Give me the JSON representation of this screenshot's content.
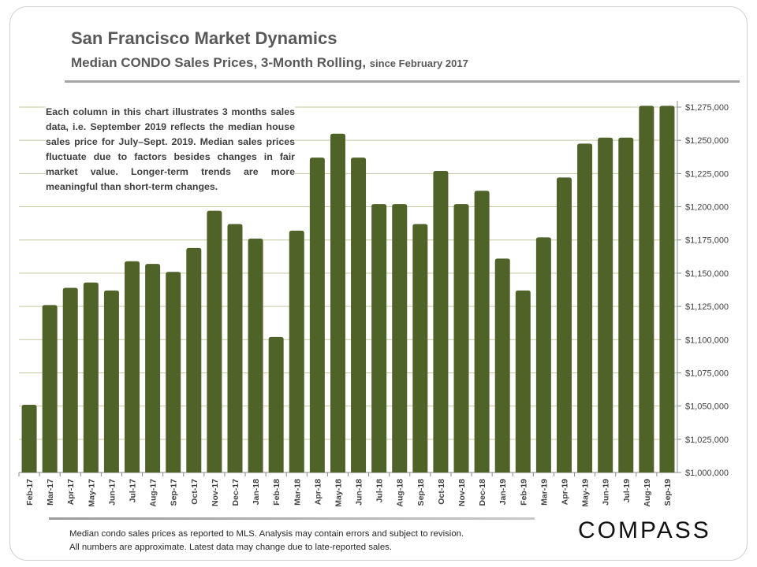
{
  "header": {
    "title": "San Francisco Market Dynamics",
    "subtitle": "Median CONDO Sales Prices, 3-Month Rolling,",
    "subtitle_small": "since February 2017"
  },
  "note": "Each column in this chart illustrates 3 months sales data, i.e. September 2019 reflects the median house sales price for July–Sept. 2019. Median sales prices fluctuate due to factors besides changes in fair market value. Longer-term trends are more meaningful than short-term changes.",
  "footer": {
    "line1": "Median condo sales prices as reported to MLS.  Analysis may contain errors and subject to revision.",
    "line2": "All numbers are approximate. Latest data may change due to late-reported sales.",
    "logo": "COMPASS"
  },
  "colors": {
    "bar": "#4f6228",
    "grid": "#c4c9a0",
    "text": "#595959"
  },
  "chart_data": {
    "type": "bar",
    "title": "",
    "xlabel": "",
    "ylabel": "",
    "ylim": [
      1000000,
      1275000
    ],
    "grid": true,
    "y_axis_side": "right",
    "yticks": [
      1000000,
      1025000,
      1050000,
      1075000,
      1100000,
      1125000,
      1150000,
      1175000,
      1200000,
      1225000,
      1250000,
      1275000
    ],
    "ytick_labels": [
      "$1,000,000",
      "$1,025,000",
      "$1,050,000",
      "$1,075,000",
      "$1,100,000",
      "$1,125,000",
      "$1,150,000",
      "$1,175,000",
      "$1,200,000",
      "$1,225,000",
      "$1,250,000",
      "$1,275,000"
    ],
    "categories": [
      "Feb-17",
      "Mar-17",
      "Apr-17",
      "May-17",
      "Jun-17",
      "Jul-17",
      "Aug-17",
      "Sep-17",
      "Oct-17",
      "Nov-17",
      "Dec-17",
      "Jan-18",
      "Feb-18",
      "Mar-18",
      "Apr-18",
      "May-18",
      "Jun-18",
      "Jul-18",
      "Aug-18",
      "Sep-18",
      "Oct-18",
      "Nov-18",
      "Dec-18",
      "Jan-19",
      "Feb-19",
      "Mar-19",
      "Apr-19",
      "May-19",
      "Jun-19",
      "Jul-19",
      "Aug-19",
      "Sep-19"
    ],
    "values": [
      1051000,
      1126000,
      1139000,
      1143000,
      1137000,
      1159000,
      1157000,
      1151000,
      1169000,
      1197000,
      1187000,
      1176000,
      1102000,
      1182000,
      1237000,
      1255000,
      1237000,
      1202000,
      1202000,
      1187000,
      1227000,
      1202000,
      1212000,
      1161000,
      1137000,
      1177000,
      1222000,
      1247500,
      1252000,
      1252000,
      1276000,
      1276000
    ]
  }
}
